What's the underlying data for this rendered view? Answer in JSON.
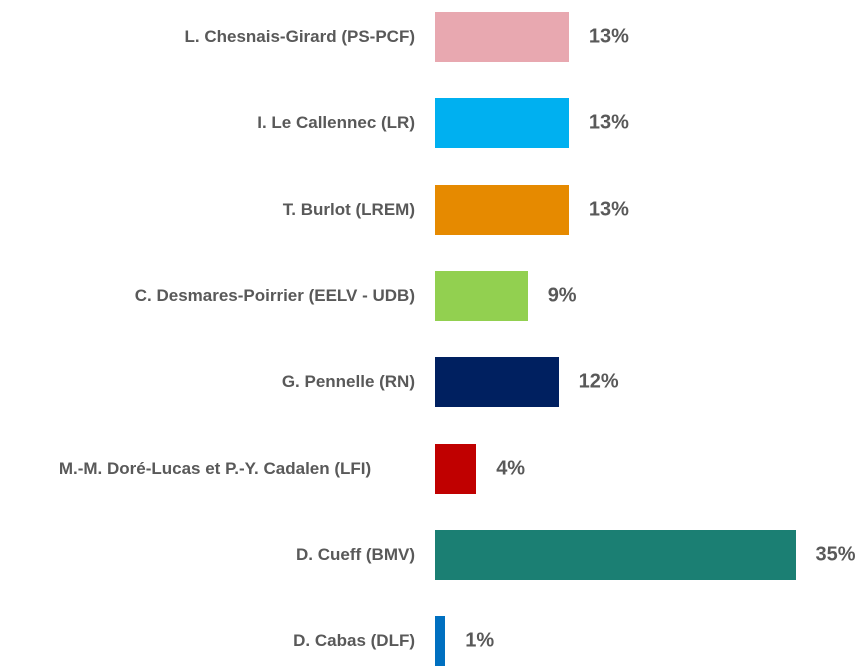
{
  "chart_data": {
    "type": "barh",
    "categories": [
      "L. Chesnais-Girard (PS-PCF)",
      "I. Le Callennec (LR)",
      "T. Burlot (LREM)",
      "C. Desmares-Poirrier (EELV - UDB)",
      "G. Pennelle (RN)",
      "M.-M. Doré-Lucas et P.-Y. Cadalen (LFI)",
      "D. Cueff (BMV)",
      "D. Cabas (DLF)"
    ],
    "values": [
      13,
      13,
      13,
      9,
      12,
      4,
      35,
      1
    ],
    "value_labels": [
      "13%",
      "13%",
      "13%",
      "9%",
      "12%",
      "4%",
      "35%",
      "1%"
    ],
    "colors": [
      "#e8a8b0",
      "#00b0f0",
      "#e68a00",
      "#92d050",
      "#002060",
      "#c00000",
      "#1b7f73",
      "#0070c0"
    ]
  }
}
